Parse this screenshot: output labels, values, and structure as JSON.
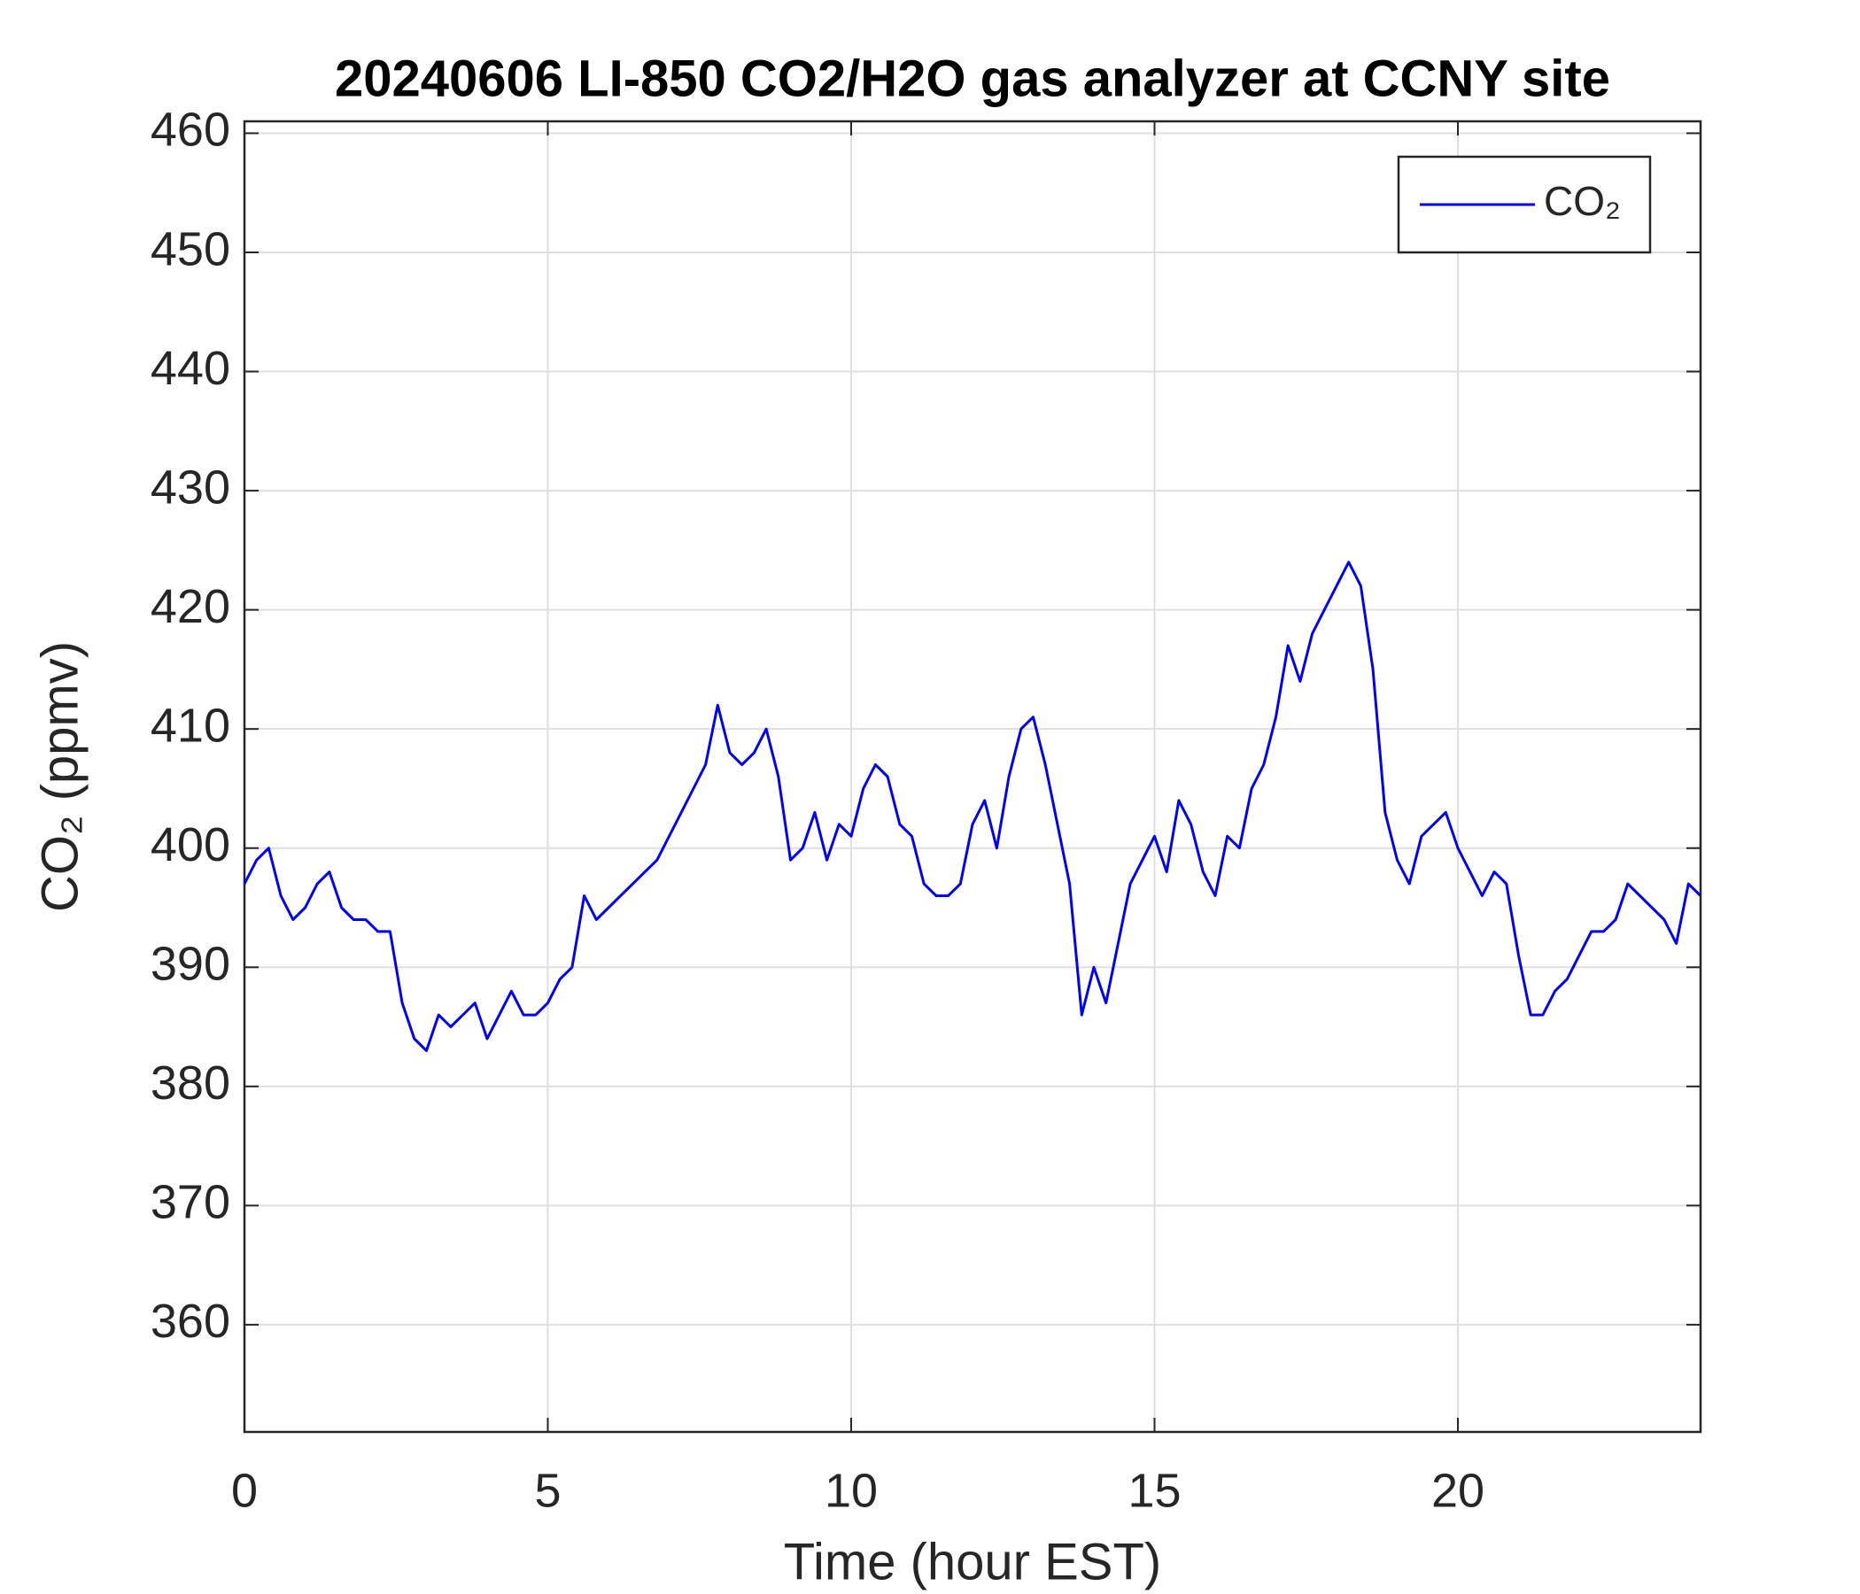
{
  "chart_data": {
    "type": "line",
    "title": "20240606 LI-850 CO2/H2O gas analyzer at CCNY site",
    "x_label": "Time (hour EST)",
    "y_label": "CO₂ (ppmv)",
    "x": [
      0,
      0.2,
      0.4,
      0.6,
      0.8,
      1,
      1.2,
      1.4,
      1.6,
      1.8,
      2,
      2.2,
      2.4,
      2.6,
      2.8,
      3,
      3.2,
      3.4,
      3.6,
      3.8,
      4,
      4.2,
      4.4,
      4.6,
      4.8,
      5,
      5.2,
      5.4,
      5.6,
      5.8,
      6,
      6.2,
      6.4,
      6.6,
      6.8,
      7,
      7.2,
      7.4,
      7.6,
      7.8,
      8,
      8.2,
      8.4,
      8.6,
      8.8,
      9,
      9.2,
      9.4,
      9.6,
      9.8,
      10,
      10.2,
      10.4,
      10.6,
      10.8,
      11,
      11.2,
      11.4,
      11.6,
      11.8,
      12,
      12.2,
      12.4,
      12.6,
      12.8,
      13,
      13.2,
      13.4,
      13.6,
      13.8,
      14,
      14.2,
      14.4,
      14.6,
      14.8,
      15,
      15.2,
      15.4,
      15.6,
      15.8,
      16,
      16.2,
      16.4,
      16.6,
      16.8,
      17,
      17.2,
      17.4,
      17.6,
      17.8,
      18,
      18.2,
      18.4,
      18.6,
      18.8,
      19,
      19.2,
      19.4,
      19.6,
      19.8,
      20,
      20.2,
      20.4,
      20.6,
      20.8,
      21,
      21.2,
      21.4,
      21.6,
      21.8,
      22,
      22.2,
      22.4,
      22.6,
      22.8,
      23,
      23.2,
      23.4,
      23.6,
      23.8,
      24
    ],
    "series": [
      {
        "name": "CO₂",
        "color": "#0000ff",
        "values": [
          397,
          399,
          400,
          396,
          394,
          395,
          397,
          398,
          395,
          394,
          394,
          393,
          393,
          387,
          384,
          383,
          386,
          385,
          386,
          387,
          384,
          386,
          388,
          386,
          386,
          387,
          389,
          390,
          396,
          394,
          395,
          396,
          397,
          398,
          399,
          401,
          403,
          405,
          407,
          412,
          408,
          407,
          408,
          410,
          406,
          399,
          400,
          403,
          399,
          402,
          401,
          405,
          407,
          406,
          402,
          401,
          397,
          396,
          396,
          397,
          402,
          404,
          400,
          406,
          410,
          411,
          407,
          402,
          397,
          386,
          390,
          387,
          392,
          397,
          399,
          401,
          398,
          404,
          402,
          398,
          396,
          401,
          400,
          405,
          407,
          411,
          417,
          414,
          418,
          420,
          422,
          424,
          422,
          415,
          403,
          399,
          397,
          401,
          402,
          403,
          400,
          398,
          396,
          398,
          397,
          391,
          386,
          386,
          388,
          389,
          391,
          393,
          393,
          394,
          397,
          396,
          395,
          394,
          392,
          397,
          396
        ]
      }
    ],
    "xlim": [
      0,
      24
    ],
    "ylim": [
      351,
      461
    ],
    "xticks": [
      0,
      5,
      10,
      15,
      20
    ],
    "yticks": [
      360,
      370,
      380,
      390,
      400,
      410,
      420,
      430,
      440,
      450,
      460
    ],
    "grid": true,
    "legend": "top-right"
  }
}
